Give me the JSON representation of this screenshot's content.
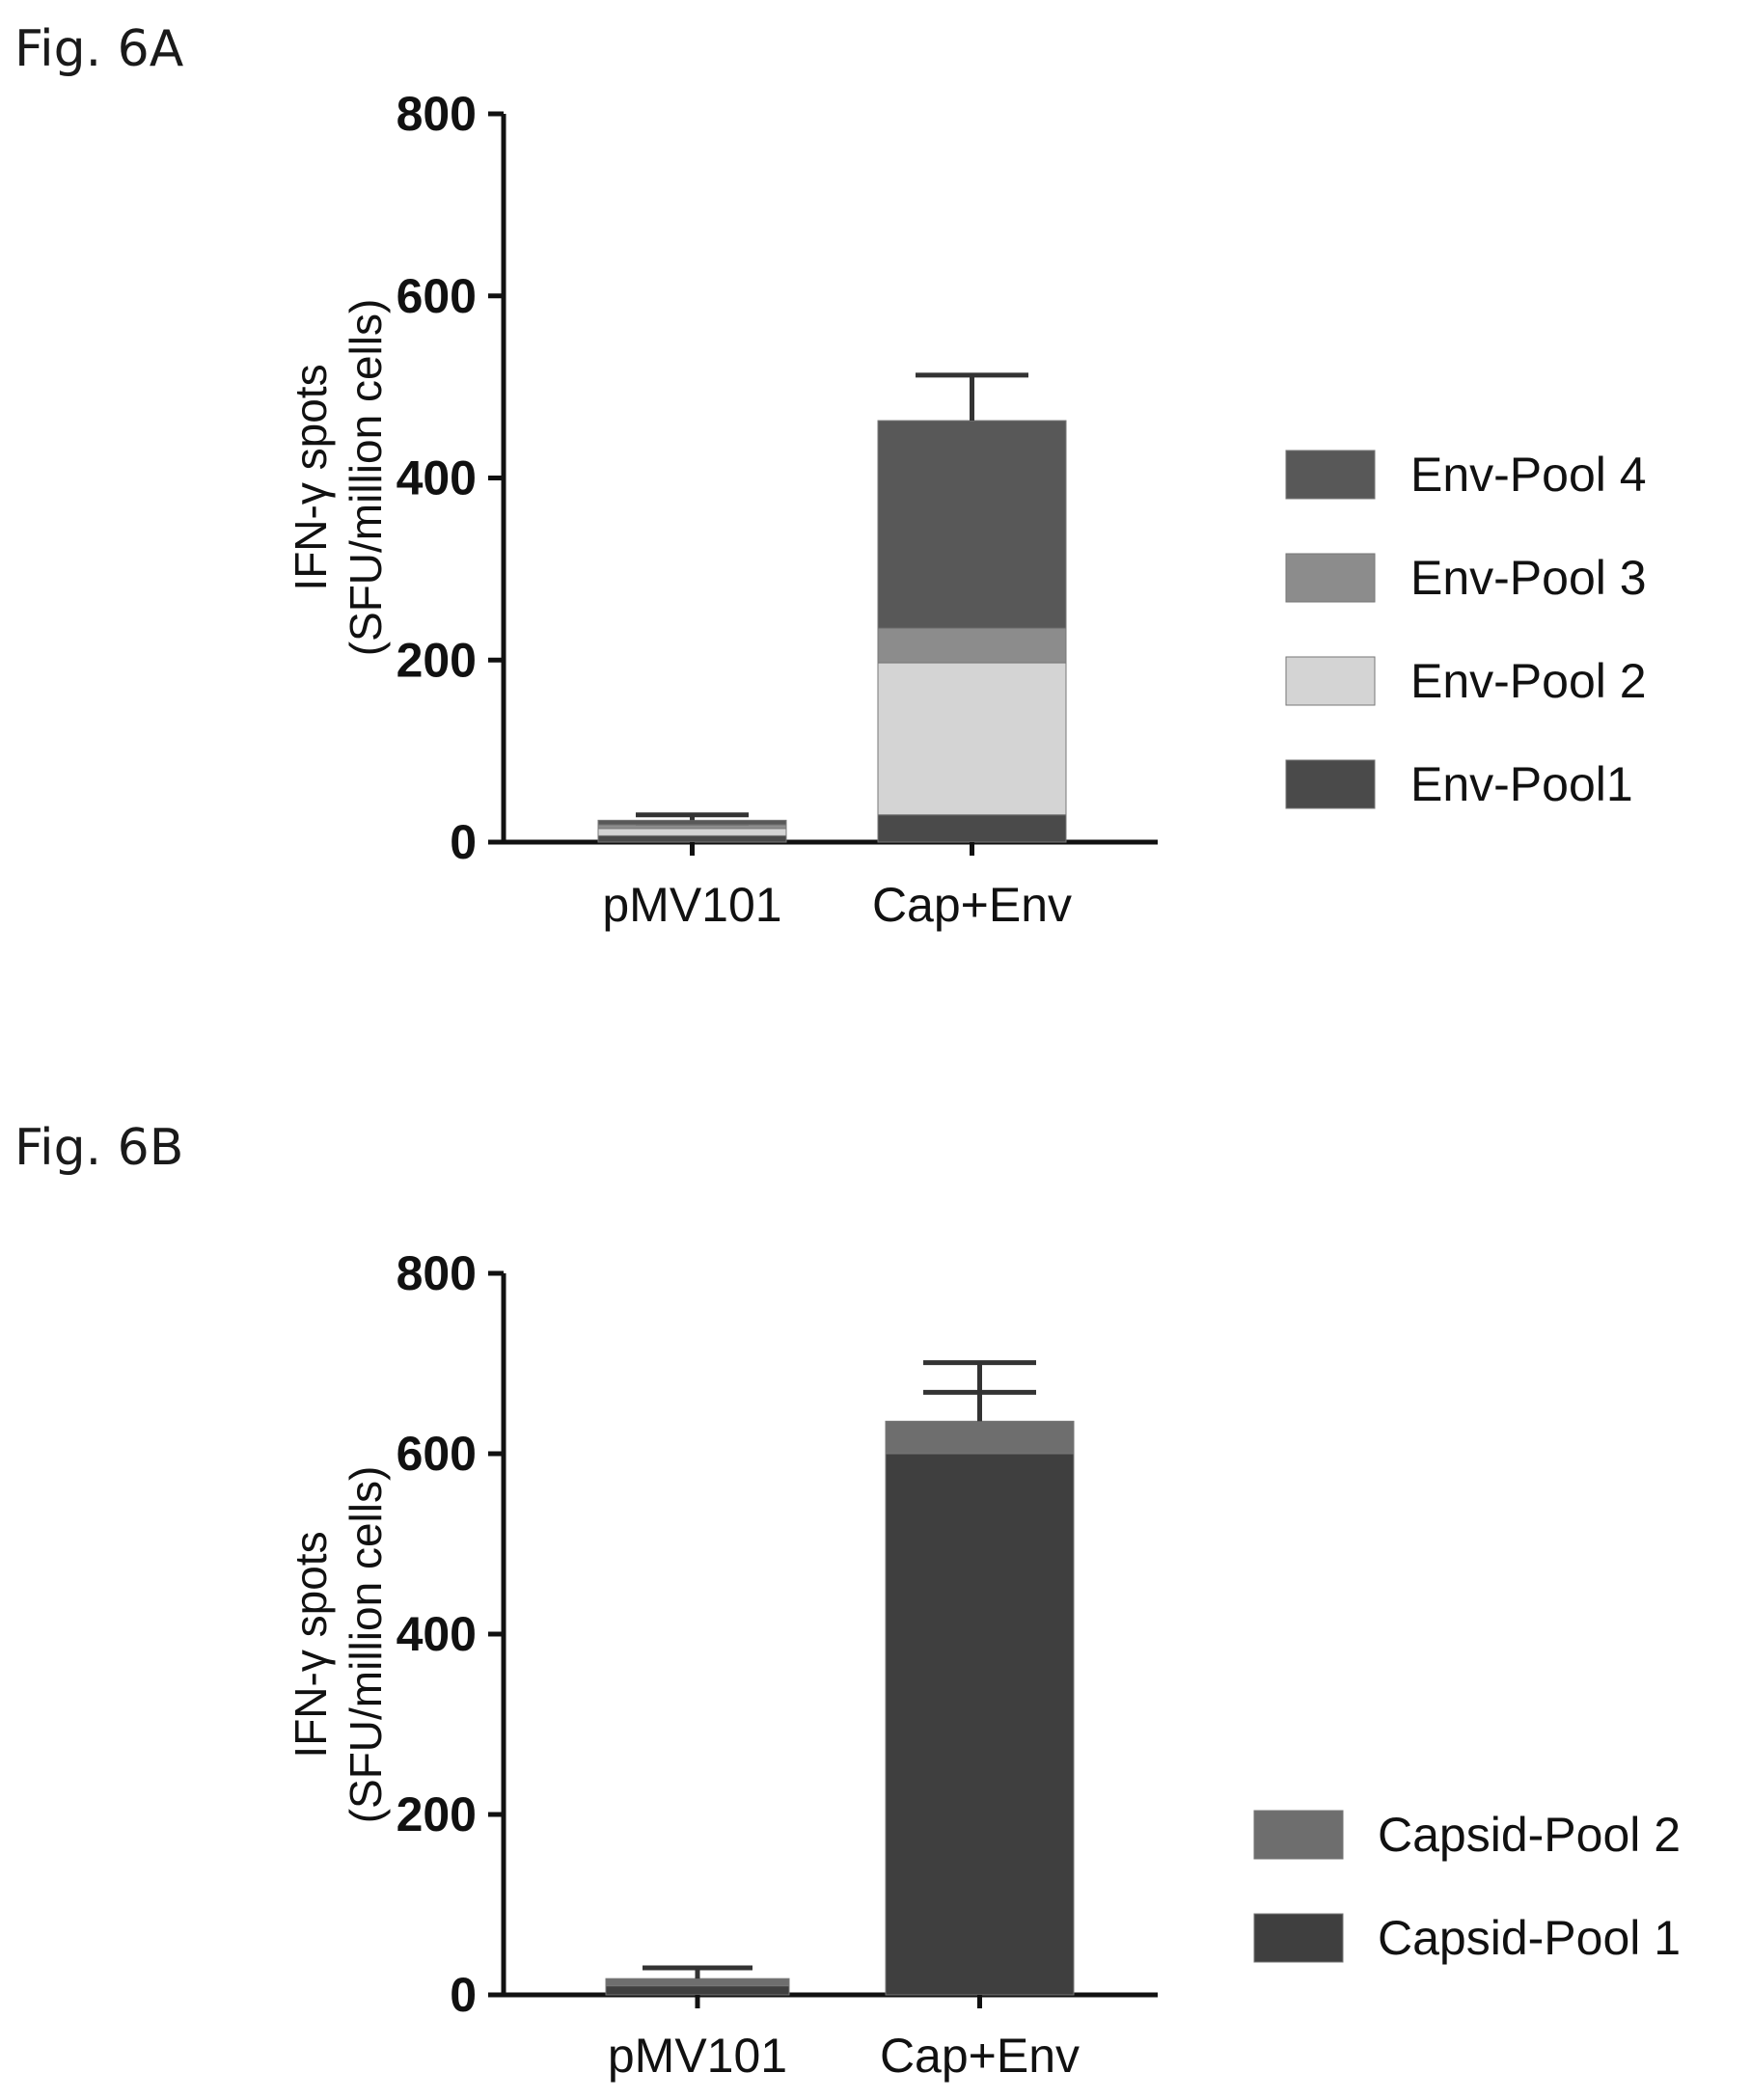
{
  "chart_data": [
    {
      "panel_label": "Fig. 6A",
      "type": "bar",
      "stacked": true,
      "categories": [
        "pMV101",
        "Cap+Env"
      ],
      "ylabel": [
        "IFN-γ spots",
        "(SFU/million cells)"
      ],
      "ylim": [
        0,
        800
      ],
      "yticks": [
        0,
        200,
        400,
        600,
        800
      ],
      "legend_position": "right",
      "series": [
        {
          "name": "Env-Pool1",
          "values": [
            7,
            30
          ],
          "errors": [
            3,
            15
          ],
          "color": "#4a4a4a"
        },
        {
          "name": "Env-Pool 2",
          "values": [
            8,
            167
          ],
          "errors": [
            3,
            8
          ],
          "color": "#d4d4d4"
        },
        {
          "name": "Env-Pool 3",
          "values": [
            4,
            38
          ],
          "errors": [
            2,
            10
          ],
          "color": "#8c8c8c"
        },
        {
          "name": "Env-Pool 4",
          "values": [
            5,
            228
          ],
          "errors": [
            6,
            50
          ],
          "color": "#585858"
        }
      ],
      "legend_order": [
        "Env-Pool 4",
        "Env-Pool 3",
        "Env-Pool 2",
        "Env-Pool1"
      ]
    },
    {
      "panel_label": "Fig. 6B",
      "type": "bar",
      "stacked": true,
      "categories": [
        "pMV101",
        "Cap+Env"
      ],
      "ylabel": [
        "IFN-γ spots",
        "(SFU/million cells)"
      ],
      "ylim": [
        0,
        800
      ],
      "yticks": [
        0,
        200,
        400,
        600,
        800
      ],
      "legend_position": "bottom-right",
      "series": [
        {
          "name": "Capsid-Pool 1",
          "values": [
            10,
            600
          ],
          "errors": [
            3,
            68
          ],
          "color": "#3f3f3f"
        },
        {
          "name": "Capsid-Pool 2",
          "values": [
            8,
            36
          ],
          "errors": [
            12,
            65
          ],
          "color": "#6e6e6e"
        }
      ],
      "legend_order": [
        "Capsid-Pool 2",
        "Capsid-Pool 1"
      ]
    }
  ]
}
